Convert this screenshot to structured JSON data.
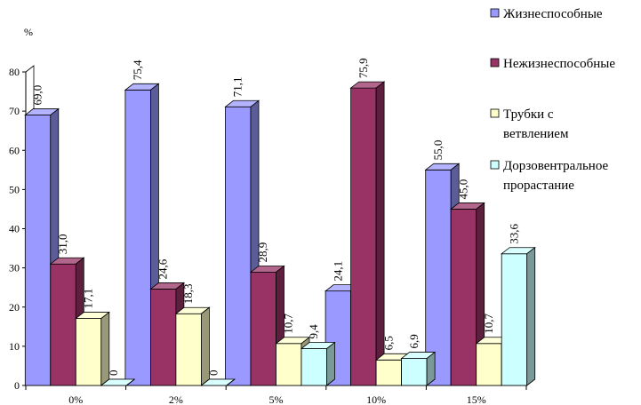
{
  "chart_data": {
    "type": "bar",
    "unit_label": "%",
    "categories": [
      "0%",
      "2%",
      "5%",
      "10%",
      "15%"
    ],
    "yticks": [
      "0",
      "10",
      "20",
      "30",
      "40",
      "50",
      "60",
      "70",
      "80"
    ],
    "ylim": [
      0,
      80
    ],
    "grid": false,
    "legend_position": "top-right",
    "series": [
      {
        "name": "Жизнеспособные",
        "values": [
          69.0,
          75.4,
          71.1,
          24.1,
          55.0
        ],
        "labels": [
          "69,0",
          "75,4",
          "71,1",
          "24,1",
          "55,0"
        ],
        "color": "#9999ff"
      },
      {
        "name": "Нежизнеспособные",
        "values": [
          31.0,
          24.6,
          28.9,
          75.9,
          45.0
        ],
        "labels": [
          "31,0",
          "24,6",
          "28,9",
          "75,9",
          "45,0"
        ],
        "color": "#993366"
      },
      {
        "name": "Трубки с ветвлением",
        "values": [
          17.1,
          18.3,
          10.7,
          6.5,
          10.7
        ],
        "labels": [
          "17,1",
          "18,3",
          "10,7",
          "6,5",
          "10,7"
        ],
        "color": "#ffffcc"
      },
      {
        "name": "Дорзовентральное прорастание",
        "values": [
          0,
          0,
          9.4,
          6.9,
          33.6
        ],
        "labels": [
          "0",
          "0",
          "9,4",
          "6,9",
          "33,6"
        ],
        "color": "#ccffff"
      }
    ],
    "legend_lines": [
      [
        "Жизнеспособные"
      ],
      [
        "Нежизнеспособные"
      ],
      [
        "Трубки с",
        "ветвлением"
      ],
      [
        "Дорзовентральное",
        "прорастание"
      ]
    ]
  }
}
